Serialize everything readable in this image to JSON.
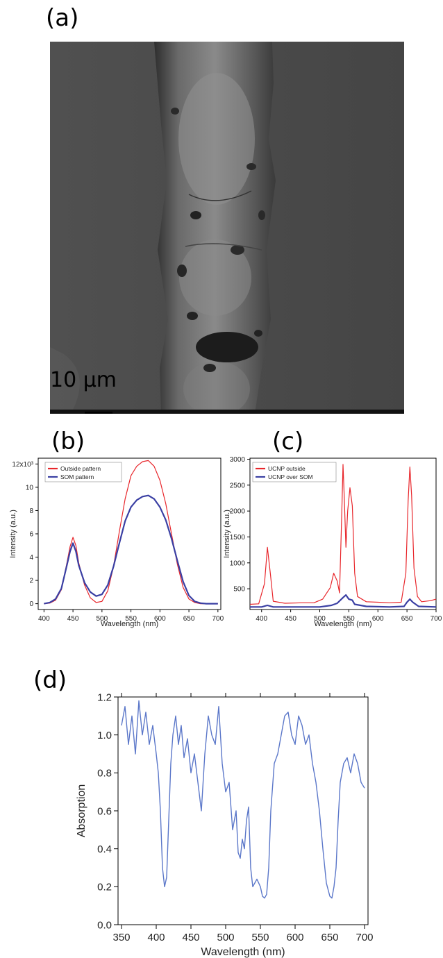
{
  "panel_labels": {
    "a": "(a)",
    "b": "(b)",
    "c": "(c)",
    "d": "(d)"
  },
  "sem": {
    "scale_label": "10 µm"
  },
  "colors": {
    "red": "#e8262b",
    "blue": "#3a3fa3",
    "absorption": "#5b77c9"
  },
  "chart_data": [
    {
      "id": "b",
      "type": "line",
      "xlabel": "Wavelength (nm)",
      "ylabel": "Intensity (a.u.)",
      "xlim": [
        390,
        705
      ],
      "ylim": [
        -500,
        12500
      ],
      "xticks": [
        "400",
        "450",
        "500",
        "550",
        "600",
        "650",
        "700"
      ],
      "yticks": [
        "0",
        "2",
        "4",
        "6",
        "8",
        "10",
        "12x10³"
      ],
      "legend": "top-left",
      "series": [
        {
          "name": "Outside pattern",
          "color": "#e8262b",
          "x": [
            400,
            410,
            420,
            430,
            440,
            445,
            450,
            455,
            460,
            470,
            480,
            490,
            500,
            510,
            520,
            530,
            540,
            550,
            560,
            570,
            580,
            590,
            600,
            610,
            620,
            630,
            640,
            650,
            660,
            670,
            680,
            690,
            700
          ],
          "values": [
            0,
            50,
            300,
            1200,
            3600,
            4900,
            5700,
            5000,
            3500,
            1600,
            500,
            100,
            200,
            1100,
            3200,
            6200,
            9000,
            11000,
            11800,
            12200,
            12300,
            11800,
            10600,
            8600,
            6000,
            3400,
            1400,
            400,
            100,
            0,
            0,
            0,
            0
          ]
        },
        {
          "name": "SOM pattern",
          "color": "#3a3fa3",
          "x": [
            400,
            410,
            420,
            430,
            440,
            445,
            450,
            455,
            460,
            470,
            480,
            490,
            500,
            510,
            520,
            530,
            540,
            550,
            560,
            570,
            580,
            590,
            600,
            610,
            620,
            630,
            640,
            650,
            660,
            670,
            680,
            690,
            700
          ],
          "values": [
            0,
            100,
            400,
            1300,
            3400,
            4500,
            5200,
            4500,
            3300,
            1800,
            1000,
            650,
            800,
            1600,
            3200,
            5200,
            7100,
            8300,
            8900,
            9200,
            9300,
            9000,
            8300,
            7200,
            5600,
            3700,
            1900,
            700,
            200,
            50,
            0,
            0,
            0
          ]
        }
      ]
    },
    {
      "id": "c",
      "type": "line",
      "xlabel": "Wavelength (nm)",
      "ylabel": "Intensity (a.u.)",
      "xlim": [
        380,
        700
      ],
      "ylim": [
        100,
        3020
      ],
      "xticks": [
        "400",
        "450",
        "500",
        "550",
        "600",
        "650",
        "700"
      ],
      "yticks": [
        "500",
        "1000",
        "1500",
        "2000",
        "2500",
        "3000"
      ],
      "legend": "top-left",
      "series": [
        {
          "name": "UCNP outside",
          "color": "#e8262b",
          "x": [
            380,
            395,
            405,
            410,
            415,
            420,
            440,
            470,
            490,
            505,
            512,
            518,
            524,
            530,
            534,
            538,
            540,
            542,
            545,
            548,
            552,
            556,
            560,
            565,
            580,
            600,
            620,
            640,
            648,
            652,
            655,
            658,
            662,
            668,
            675,
            690,
            700
          ],
          "values": [
            200,
            210,
            600,
            1300,
            800,
            260,
            220,
            230,
            230,
            300,
            420,
            520,
            800,
            650,
            420,
            2000,
            2900,
            2300,
            1300,
            2000,
            2450,
            2100,
            800,
            350,
            250,
            240,
            230,
            240,
            800,
            2200,
            2850,
            2300,
            900,
            350,
            250,
            270,
            300
          ]
        },
        {
          "name": "UCNP over SOM",
          "color": "#3a3fa3",
          "x": [
            380,
            400,
            410,
            420,
            450,
            500,
            520,
            530,
            540,
            545,
            550,
            556,
            560,
            580,
            620,
            645,
            650,
            655,
            660,
            670,
            700
          ],
          "values": [
            150,
            150,
            180,
            150,
            150,
            150,
            180,
            220,
            330,
            380,
            300,
            280,
            200,
            160,
            150,
            160,
            240,
            300,
            240,
            160,
            150
          ]
        }
      ]
    },
    {
      "id": "d",
      "type": "line",
      "xlabel": "Wavelength (nm)",
      "ylabel": "Absorption",
      "xlim": [
        345,
        705
      ],
      "ylim": [
        0,
        1.2
      ],
      "xticks": [
        "350",
        "400",
        "450",
        "500",
        "550",
        "600",
        "650",
        "700"
      ],
      "yticks": [
        "0.0",
        "0.2",
        "0.4",
        "0.6",
        "0.8",
        "1.0",
        "1.2"
      ],
      "series": [
        {
          "name": "",
          "color": "#5b77c9",
          "x": [
            350,
            355,
            360,
            365,
            370,
            375,
            380,
            385,
            390,
            395,
            400,
            403,
            406,
            409,
            412,
            415,
            418,
            421,
            424,
            428,
            432,
            436,
            440,
            445,
            450,
            455,
            460,
            465,
            470,
            475,
            480,
            485,
            490,
            495,
            500,
            505,
            510,
            515,
            518,
            521,
            524,
            527,
            530,
            533,
            536,
            539,
            542,
            545,
            550,
            553,
            556,
            559,
            562,
            565,
            570,
            575,
            580,
            585,
            590,
            595,
            600,
            605,
            610,
            615,
            620,
            625,
            630,
            635,
            640,
            645,
            650,
            653,
            656,
            659,
            662,
            665,
            670,
            675,
            680,
            685,
            690,
            695,
            700
          ],
          "values": [
            1.05,
            1.15,
            0.95,
            1.1,
            0.9,
            1.18,
            1.0,
            1.12,
            0.95,
            1.05,
            0.9,
            0.8,
            0.6,
            0.3,
            0.2,
            0.25,
            0.55,
            0.85,
            1.0,
            1.1,
            0.95,
            1.05,
            0.88,
            0.98,
            0.8,
            0.9,
            0.75,
            0.6,
            0.9,
            1.1,
            1.0,
            0.95,
            1.15,
            0.85,
            0.7,
            0.75,
            0.5,
            0.6,
            0.38,
            0.35,
            0.45,
            0.4,
            0.55,
            0.62,
            0.3,
            0.2,
            0.22,
            0.24,
            0.2,
            0.15,
            0.14,
            0.16,
            0.3,
            0.6,
            0.85,
            0.9,
            1.0,
            1.1,
            1.12,
            1.0,
            0.95,
            1.1,
            1.05,
            0.95,
            1.0,
            0.85,
            0.75,
            0.6,
            0.4,
            0.22,
            0.15,
            0.14,
            0.2,
            0.3,
            0.55,
            0.75,
            0.85,
            0.88,
            0.8,
            0.9,
            0.85,
            0.75,
            0.72
          ]
        }
      ]
    }
  ]
}
